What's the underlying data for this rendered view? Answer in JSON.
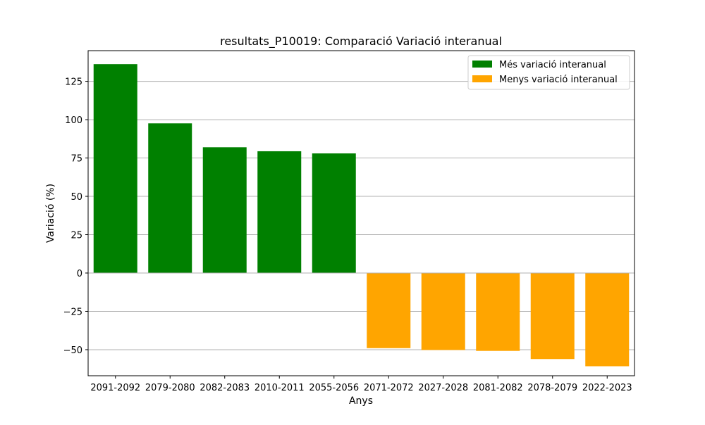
{
  "chart_data": {
    "type": "bar",
    "title": "resultats_P10019: Comparació Variació interanual",
    "xlabel": "Anys",
    "ylabel": "Variació (%)",
    "ylim": [
      -67,
      145
    ],
    "yticks": [
      -50,
      -25,
      0,
      25,
      50,
      75,
      100,
      125
    ],
    "ytick_labels": [
      "−50",
      "−25",
      "0",
      "25",
      "50",
      "75",
      "100",
      "125"
    ],
    "grid": "horizontal",
    "legend_position": "top-right",
    "categories": [
      "2091-2092",
      "2079-2080",
      "2082-2083",
      "2010-2011",
      "2055-2056",
      "2071-2072",
      "2027-2028",
      "2081-2082",
      "2078-2079",
      "2022-2023"
    ],
    "series": [
      {
        "name": "Més variació interanual",
        "color": "#008000",
        "values": [
          136.2,
          97.6,
          82.0,
          79.4,
          78.0,
          null,
          null,
          null,
          null,
          null
        ]
      },
      {
        "name": "Menys variació interanual",
        "color": "#ffa500",
        "values": [
          null,
          null,
          null,
          null,
          null,
          -49.0,
          -50.2,
          -50.8,
          -56.1,
          -60.8
        ]
      }
    ]
  }
}
